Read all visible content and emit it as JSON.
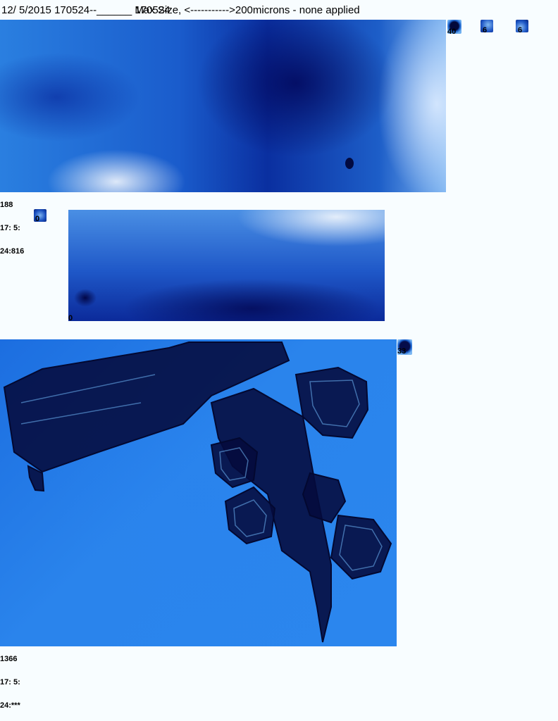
{
  "header": {
    "date": "12/ 5/2015",
    "id_text": "170524--______",
    "overlap_a": "Max Size,",
    "overlap_b": "170524",
    "scale_text": "<----------->200microns - none applied"
  },
  "thumbnails": [
    {
      "name": "thumb-1",
      "label": "40"
    },
    {
      "name": "thumb-2",
      "label": "6"
    },
    {
      "name": "thumb-3",
      "label": "6"
    },
    {
      "name": "thumb-4",
      "label": "0"
    },
    {
      "name": "thumb-5",
      "label": "33"
    }
  ],
  "images": [
    {
      "name": "particle-image-1",
      "meta": [
        "188",
        "17: 5:",
        "24:816"
      ],
      "corner_label": ""
    },
    {
      "name": "particle-image-2",
      "meta": [],
      "corner_label": "0"
    },
    {
      "name": "particle-image-3",
      "meta": [
        "1366",
        "17: 5:",
        "24:***"
      ],
      "corner_label": ""
    }
  ],
  "colors": {
    "background": "#f8fdff",
    "image_blue": "#1c6ee0",
    "crystal_dark": "#020a40"
  }
}
